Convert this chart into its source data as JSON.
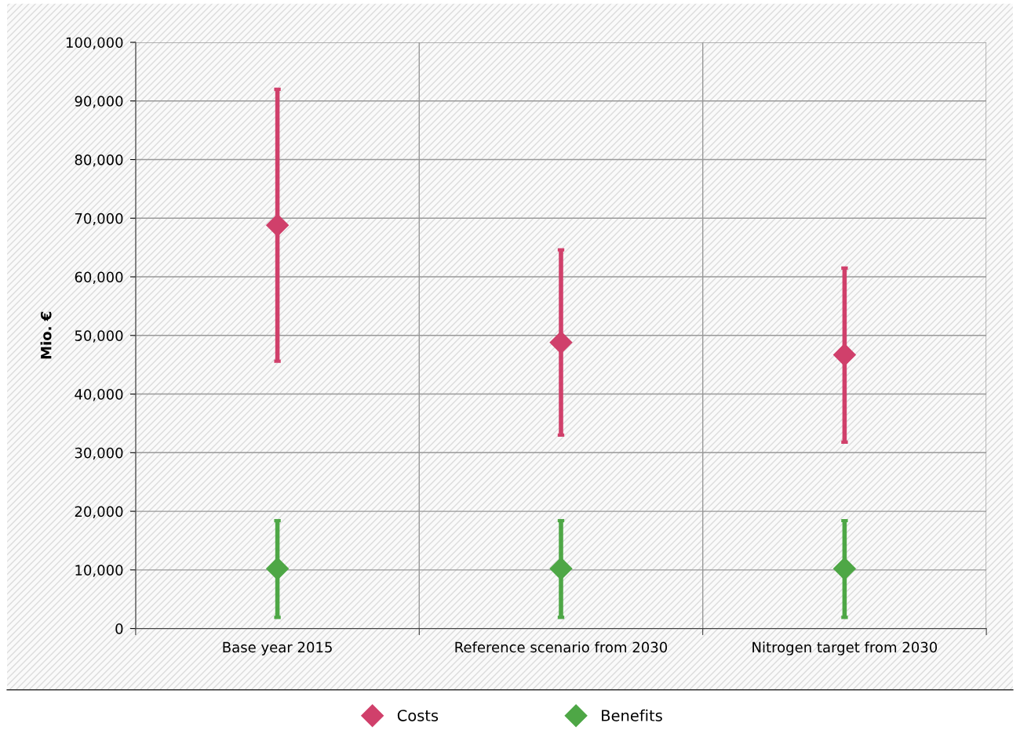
{
  "chart_data": {
    "type": "scatter",
    "ylabel": "Mio. €",
    "categories": [
      "Base year 2015",
      "Reference scenario from 2030",
      "Nitrogen target from 2030"
    ],
    "series": [
      {
        "name": "Costs",
        "color": "#d0406b",
        "values": [
          68800,
          48800,
          46700
        ],
        "errors": [
          [
            45600,
            92000
          ],
          [
            33000,
            64600
          ],
          [
            31800,
            61500
          ]
        ]
      },
      {
        "name": "Benefits",
        "color": "#4ea746",
        "values": [
          10200,
          10200,
          10200
        ],
        "errors": [
          [
            1900,
            18400
          ],
          [
            1900,
            18400
          ],
          [
            1900,
            18400
          ]
        ]
      }
    ],
    "ylim": [
      0,
      100000
    ],
    "yticks": [
      {
        "value": 0,
        "label": "0"
      },
      {
        "value": 10000,
        "label": "10,000"
      },
      {
        "value": 20000,
        "label": "20,000"
      },
      {
        "value": 30000,
        "label": "30,000"
      },
      {
        "value": 40000,
        "label": "40,000"
      },
      {
        "value": 50000,
        "label": "50,000"
      },
      {
        "value": 60000,
        "label": "60,000"
      },
      {
        "value": 70000,
        "label": "70,000"
      },
      {
        "value": 80000,
        "label": "80,000"
      },
      {
        "value": 90000,
        "label": "90,000"
      },
      {
        "value": 100000,
        "label": "100,000"
      }
    ],
    "grid": true,
    "legend": "bottom",
    "marker": "diamond"
  }
}
